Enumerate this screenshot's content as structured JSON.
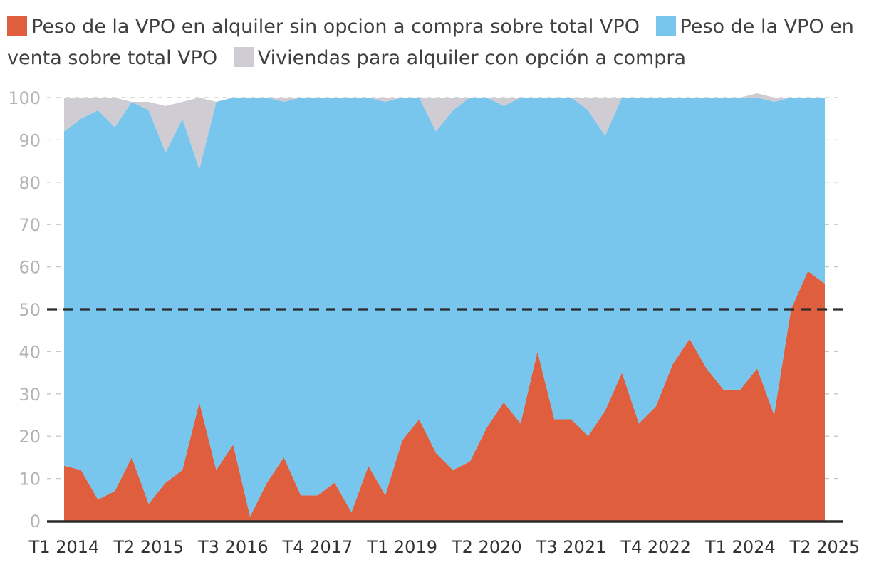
{
  "chart_data": {
    "type": "area",
    "stacked": true,
    "series": [
      {
        "name": "Peso de la VPO en alquiler sin opcion a compra sobre total VPO",
        "color": "#de5e3d",
        "values": [
          13,
          12,
          5,
          7,
          15,
          4,
          9,
          12,
          28,
          12,
          18,
          1,
          9,
          15,
          6,
          6,
          9,
          2,
          13,
          6,
          19,
          24,
          16,
          12,
          14,
          22,
          28,
          23,
          40,
          24,
          24,
          20,
          26,
          35,
          23,
          27,
          37,
          43,
          36,
          31,
          31,
          36,
          25,
          50,
          59,
          56
        ]
      },
      {
        "name": "Peso de la VPO en venta sobre total VPO",
        "color": "#78c5ed",
        "values": [
          79,
          83,
          92,
          86,
          84,
          93,
          78,
          83,
          55,
          87,
          82,
          99,
          91,
          84,
          94,
          94,
          91,
          98,
          87,
          93,
          81,
          76,
          76,
          85,
          86,
          78,
          70,
          77,
          60,
          76,
          76,
          77,
          65,
          65,
          77,
          73,
          63,
          57,
          64,
          69,
          69,
          64,
          74,
          50,
          41,
          44
        ]
      },
      {
        "name": "Viviendas para alquiler con opción a compra",
        "color": "#cfccd3",
        "values": [
          8,
          5,
          3,
          7,
          0,
          2,
          11,
          4,
          17,
          0,
          0,
          0,
          0,
          1,
          0,
          0,
          0,
          0,
          0,
          1,
          0,
          0,
          8,
          3,
          0,
          0,
          2,
          0,
          0,
          0,
          0,
          3,
          9,
          0,
          0,
          0,
          0,
          0,
          0,
          0,
          0,
          1,
          1,
          0,
          0,
          0
        ]
      }
    ],
    "x_tick_labels": [
      "T1 2014",
      "T2 2015",
      "T3 2016",
      "T4 2017",
      "T1 2019",
      "T2 2020",
      "T3 2021",
      "T4 2022",
      "T1 2024",
      "T2 2025"
    ],
    "x_tick_indices": [
      0,
      5,
      10,
      15,
      20,
      25,
      30,
      35,
      40,
      45
    ],
    "y_ticks": [
      0,
      10,
      20,
      30,
      40,
      50,
      60,
      70,
      80,
      90,
      100
    ],
    "ylim": [
      0,
      100
    ],
    "reference_line": 50,
    "title": "",
    "xlabel": "",
    "ylabel": ""
  }
}
